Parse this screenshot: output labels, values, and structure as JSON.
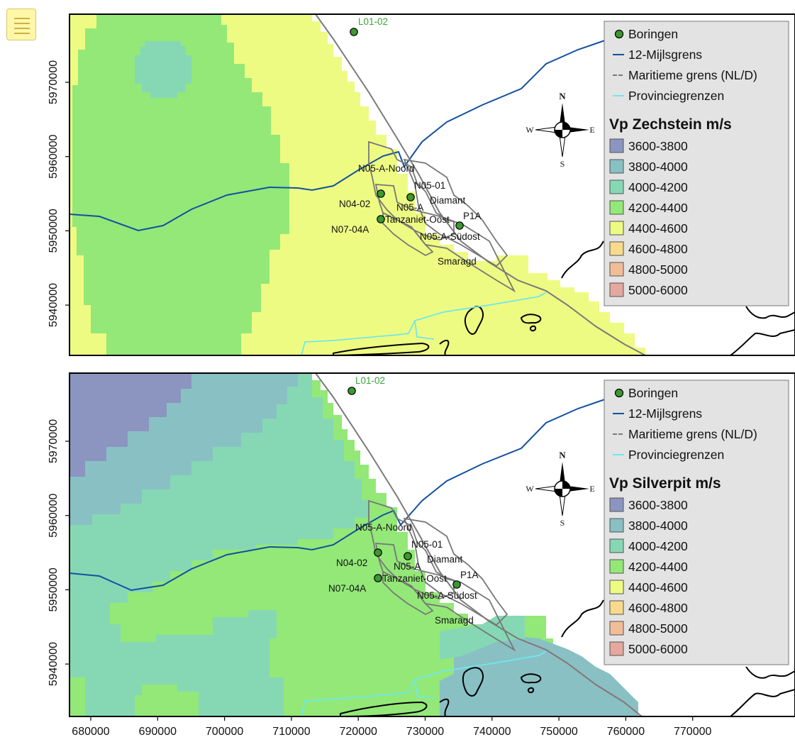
{
  "menu": {
    "icon": "hamburger-menu-icon"
  },
  "x_axis": {
    "ticks": [
      "680000",
      "690000",
      "700000",
      "710000",
      "720000",
      "730000",
      "740000",
      "750000",
      "760000",
      "770000"
    ]
  },
  "y_axis": {
    "ticks": [
      "5970000",
      "5960000",
      "5950000",
      "5940000"
    ]
  },
  "legend_common": {
    "wells_label": "Boringen",
    "twelve_mile_label": "12-Mijlsgrens",
    "maritime_label": "Maritieme grens (NL/D)",
    "provincial_label": "Provinciegrenzen"
  },
  "classes": [
    {
      "label": "3600-3800",
      "color": "#8b95c0"
    },
    {
      "label": "3800-4000",
      "color": "#89c0c4"
    },
    {
      "label": "4000-4200",
      "color": "#86d8b4"
    },
    {
      "label": "4200-4400",
      "color": "#93e878"
    },
    {
      "label": "4400-4600",
      "color": "#eefb82"
    },
    {
      "label": "4600-4800",
      "color": "#f7da8c"
    },
    {
      "label": "4800-5000",
      "color": "#f2bd96"
    },
    {
      "label": "5000-6000",
      "color": "#e4a89e"
    }
  ],
  "panels": [
    {
      "title": "Vp Zechstein m/s"
    },
    {
      "title": "Vp Silverpit m/s"
    }
  ],
  "wells": {
    "L01-02": "L01-02",
    "N05-A-Noord": "N05-A-Noord",
    "N05-01": "N05-01",
    "Diamant": "Diamant",
    "N04-02": "N04-02",
    "N05-A": "N05-A",
    "P1A": "P1A",
    "Tanzaniet-Oost": "Tanzaniet-Oost",
    "N07-04A": "N07-04A",
    "N05-A-Sudost": "N05-A-Südost",
    "Smaragd": "Smaragd"
  },
  "compass": {
    "n": "N",
    "s": "S",
    "e": "E",
    "w": "W"
  },
  "colors": {
    "twelve_mile": "#1450a0",
    "maritime": "#7a7a7a",
    "provincial": "#6fe8ec",
    "well_fill": "#3b9a2e",
    "field_outline": "#777777",
    "legend_bg": "#e3e3e3"
  }
}
